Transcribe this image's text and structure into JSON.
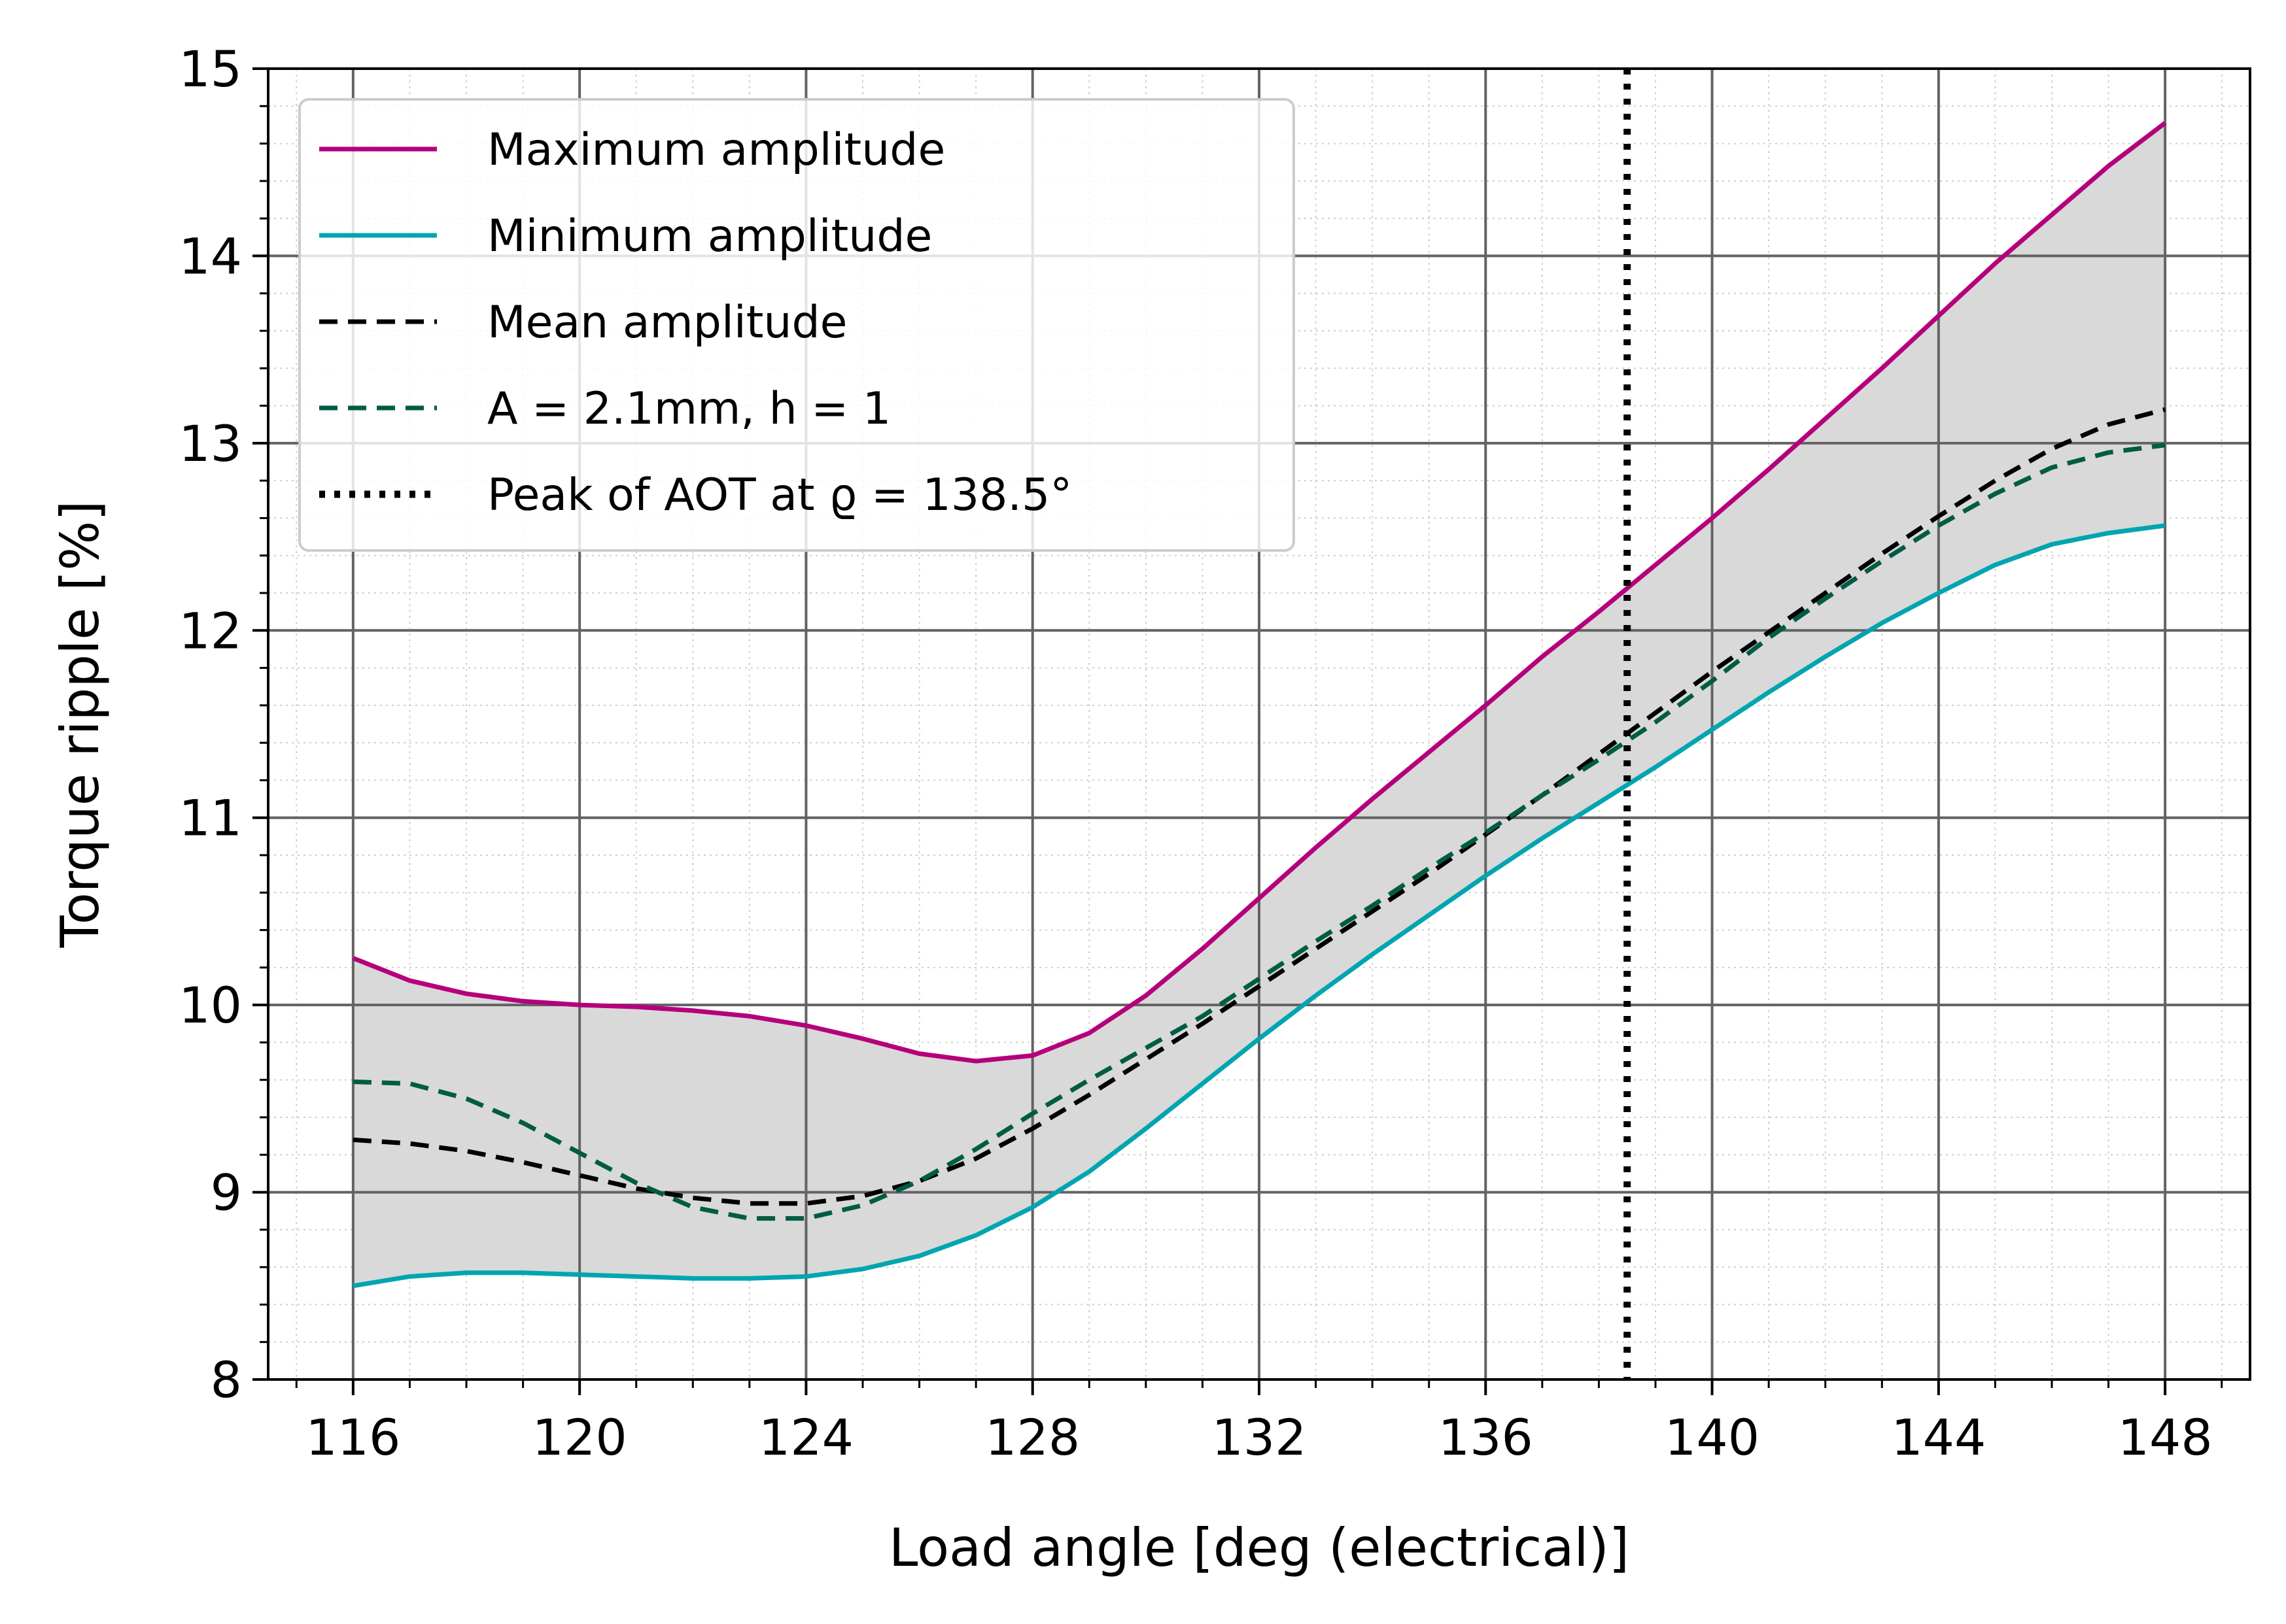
{
  "chart_data": {
    "type": "line",
    "xlabel": "Load angle [deg (electrical)]",
    "ylabel": "Torque ripple [%]",
    "xlim": [
      114.5,
      149.5
    ],
    "ylim": [
      8,
      15
    ],
    "x_ticks": [
      116,
      120,
      124,
      128,
      132,
      136,
      140,
      144,
      148
    ],
    "x_tick_labels": [
      "116",
      "120",
      "124",
      "128",
      "132",
      "136",
      "140",
      "144",
      "148"
    ],
    "y_ticks": [
      8,
      9,
      10,
      11,
      12,
      13,
      14,
      15
    ],
    "y_tick_labels": [
      "8",
      "9",
      "10",
      "11",
      "12",
      "13",
      "14",
      "15"
    ],
    "grid": "major and minor",
    "legend_position": "top-left",
    "x": [
      116,
      117,
      118,
      119,
      120,
      121,
      122,
      123,
      124,
      125,
      126,
      127,
      128,
      129,
      130,
      131,
      132,
      133,
      134,
      135,
      136,
      137,
      138,
      139,
      140,
      141,
      142,
      143,
      144,
      145,
      146,
      147,
      148
    ],
    "series": [
      {
        "name": "Maximum amplitude",
        "color": "#b5007b",
        "style": "solid",
        "values": [
          10.25,
          10.13,
          10.06,
          10.02,
          10.0,
          9.99,
          9.97,
          9.94,
          9.89,
          9.82,
          9.74,
          9.7,
          9.73,
          9.85,
          10.05,
          10.3,
          10.57,
          10.84,
          11.1,
          11.35,
          11.6,
          11.86,
          12.1,
          12.35,
          12.6,
          12.86,
          13.13,
          13.4,
          13.68,
          13.96,
          14.22,
          14.48,
          14.71
        ]
      },
      {
        "name": "Minimum amplitude",
        "color": "#00a5b0",
        "style": "solid",
        "values": [
          8.5,
          8.55,
          8.57,
          8.57,
          8.56,
          8.55,
          8.54,
          8.54,
          8.55,
          8.59,
          8.66,
          8.77,
          8.92,
          9.11,
          9.34,
          9.58,
          9.82,
          10.05,
          10.27,
          10.48,
          10.69,
          10.89,
          11.08,
          11.27,
          11.47,
          11.67,
          11.86,
          12.04,
          12.2,
          12.35,
          12.46,
          12.52,
          12.56
        ]
      },
      {
        "name": "Mean amplitude",
        "color": "#000000",
        "style": "dashed",
        "values": [
          9.28,
          9.26,
          9.22,
          9.16,
          9.09,
          9.02,
          8.97,
          8.94,
          8.94,
          8.98,
          9.06,
          9.18,
          9.34,
          9.52,
          9.71,
          9.9,
          10.1,
          10.3,
          10.5,
          10.7,
          10.91,
          11.12,
          11.34,
          11.56,
          11.78,
          11.99,
          12.2,
          12.41,
          12.61,
          12.8,
          12.97,
          13.1,
          13.18
        ]
      },
      {
        "name": "A = 2.1mm, h = 1",
        "color": "#005c44",
        "style": "dashed",
        "values": [
          9.59,
          9.58,
          9.5,
          9.37,
          9.21,
          9.05,
          8.92,
          8.86,
          8.86,
          8.93,
          9.06,
          9.23,
          9.42,
          9.6,
          9.77,
          9.94,
          10.14,
          10.34,
          10.53,
          10.73,
          10.92,
          11.12,
          11.31,
          11.51,
          11.73,
          11.96,
          12.17,
          12.37,
          12.56,
          12.73,
          12.87,
          12.95,
          12.99
        ]
      }
    ],
    "fill_between": {
      "upper": "Maximum amplitude",
      "lower": "Minimum amplitude",
      "color": "#d9d9d9"
    },
    "vertical_line": {
      "x": 138.5,
      "name": "Peak of AOT at ϱ = 138.5°",
      "color": "#000000",
      "style": "dotted"
    }
  }
}
